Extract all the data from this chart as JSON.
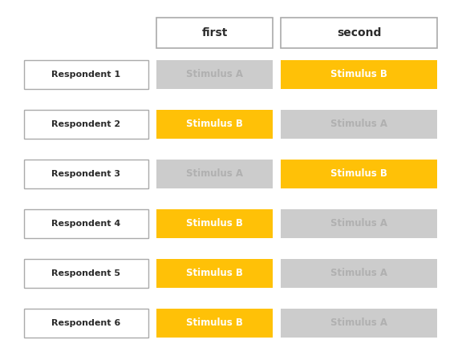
{
  "background_color": "#ffffff",
  "header_labels": [
    "first",
    "second"
  ],
  "respondents": [
    "Respondent 1",
    "Respondent 2",
    "Respondent 3",
    "Respondent 4",
    "Respondent 5",
    "Respondent 6"
  ],
  "sequence": [
    [
      "Stimulus A",
      "Stimulus B"
    ],
    [
      "Stimulus B",
      "Stimulus A"
    ],
    [
      "Stimulus A",
      "Stimulus B"
    ],
    [
      "Stimulus B",
      "Stimulus A"
    ],
    [
      "Stimulus B",
      "Stimulus A"
    ],
    [
      "Stimulus B",
      "Stimulus A"
    ]
  ],
  "color_A": "#cccccc",
  "color_B": "#FFC107",
  "text_color_A": "#b0b0b0",
  "text_color_B": "#ffffff",
  "respondent_text_color": "#2b2b2b",
  "header_text_color": "#2b2b2b",
  "fig_width": 5.76,
  "fig_height": 4.54,
  "dpi": 100
}
